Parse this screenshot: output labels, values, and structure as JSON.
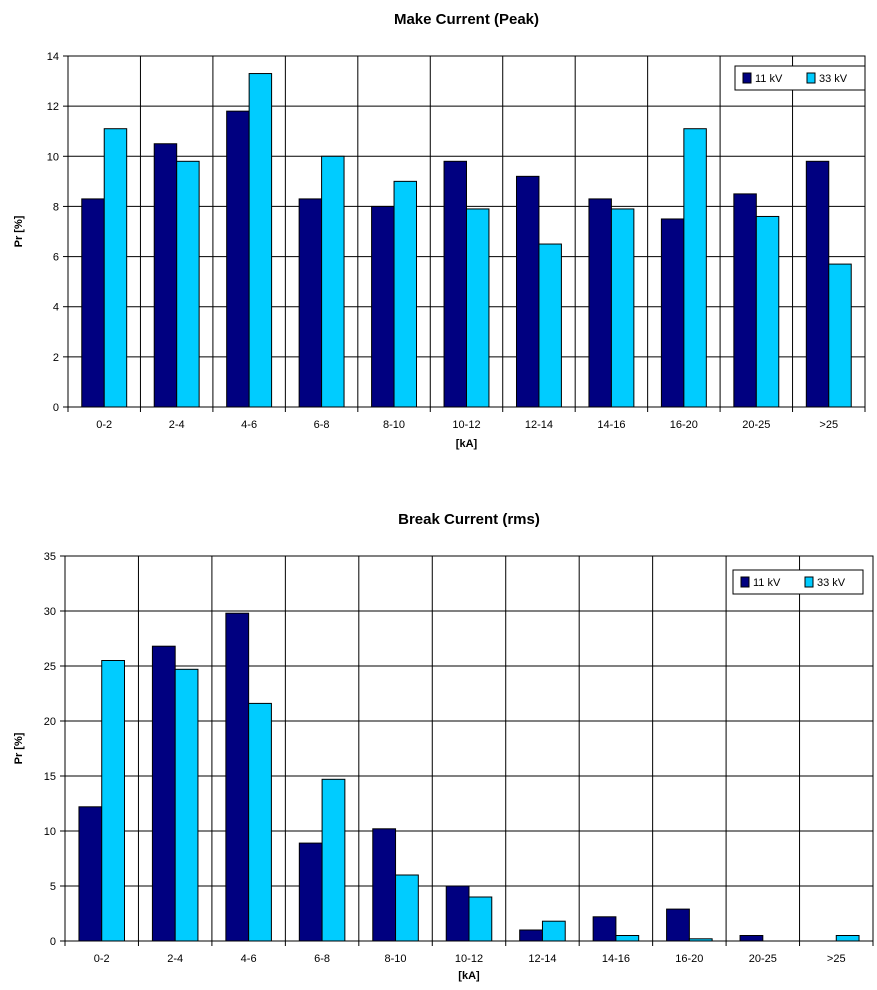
{
  "chart_data": [
    {
      "type": "bar",
      "title": "Make Current (Peak)",
      "xlabel": "[kA]",
      "ylabel": "Pr [%]",
      "ylim": [
        0,
        14
      ],
      "ytick_step": 2,
      "categories": [
        "0-2",
        "2-4",
        "4-6",
        "6-8",
        "8-10",
        "10-12",
        "12-14",
        "14-16",
        "16-20",
        "20-25",
        ">25"
      ],
      "series": [
        {
          "name": "11 kV",
          "color": "#000080",
          "values": [
            8.3,
            10.5,
            11.8,
            8.3,
            8.0,
            9.8,
            9.2,
            8.3,
            7.5,
            8.5,
            9.8
          ]
        },
        {
          "name": "33 kV",
          "color": "#00CCFF",
          "values": [
            11.1,
            9.8,
            13.3,
            10.0,
            9.0,
            7.9,
            6.5,
            7.9,
            11.1,
            7.6,
            5.7
          ]
        }
      ],
      "grid": true,
      "legend": "top-right"
    },
    {
      "type": "bar",
      "title": "Break Current (rms)",
      "xlabel": "[kA]",
      "ylabel": "Pr [%]",
      "ylim": [
        0,
        35
      ],
      "ytick_step": 5,
      "categories": [
        "0-2",
        "2-4",
        "4-6",
        "6-8",
        "8-10",
        "10-12",
        "12-14",
        "14-16",
        "16-20",
        "20-25",
        ">25"
      ],
      "series": [
        {
          "name": "11 kV",
          "color": "#000080",
          "values": [
            12.2,
            26.8,
            29.8,
            8.9,
            10.2,
            5.0,
            1.0,
            2.2,
            2.9,
            0.5,
            0.0
          ]
        },
        {
          "name": "33 kV",
          "color": "#00CCFF",
          "values": [
            25.5,
            24.7,
            21.6,
            14.7,
            6.0,
            4.0,
            1.8,
            0.5,
            0.2,
            0.0,
            0.5
          ]
        }
      ],
      "grid": true,
      "legend": "top-right"
    }
  ]
}
